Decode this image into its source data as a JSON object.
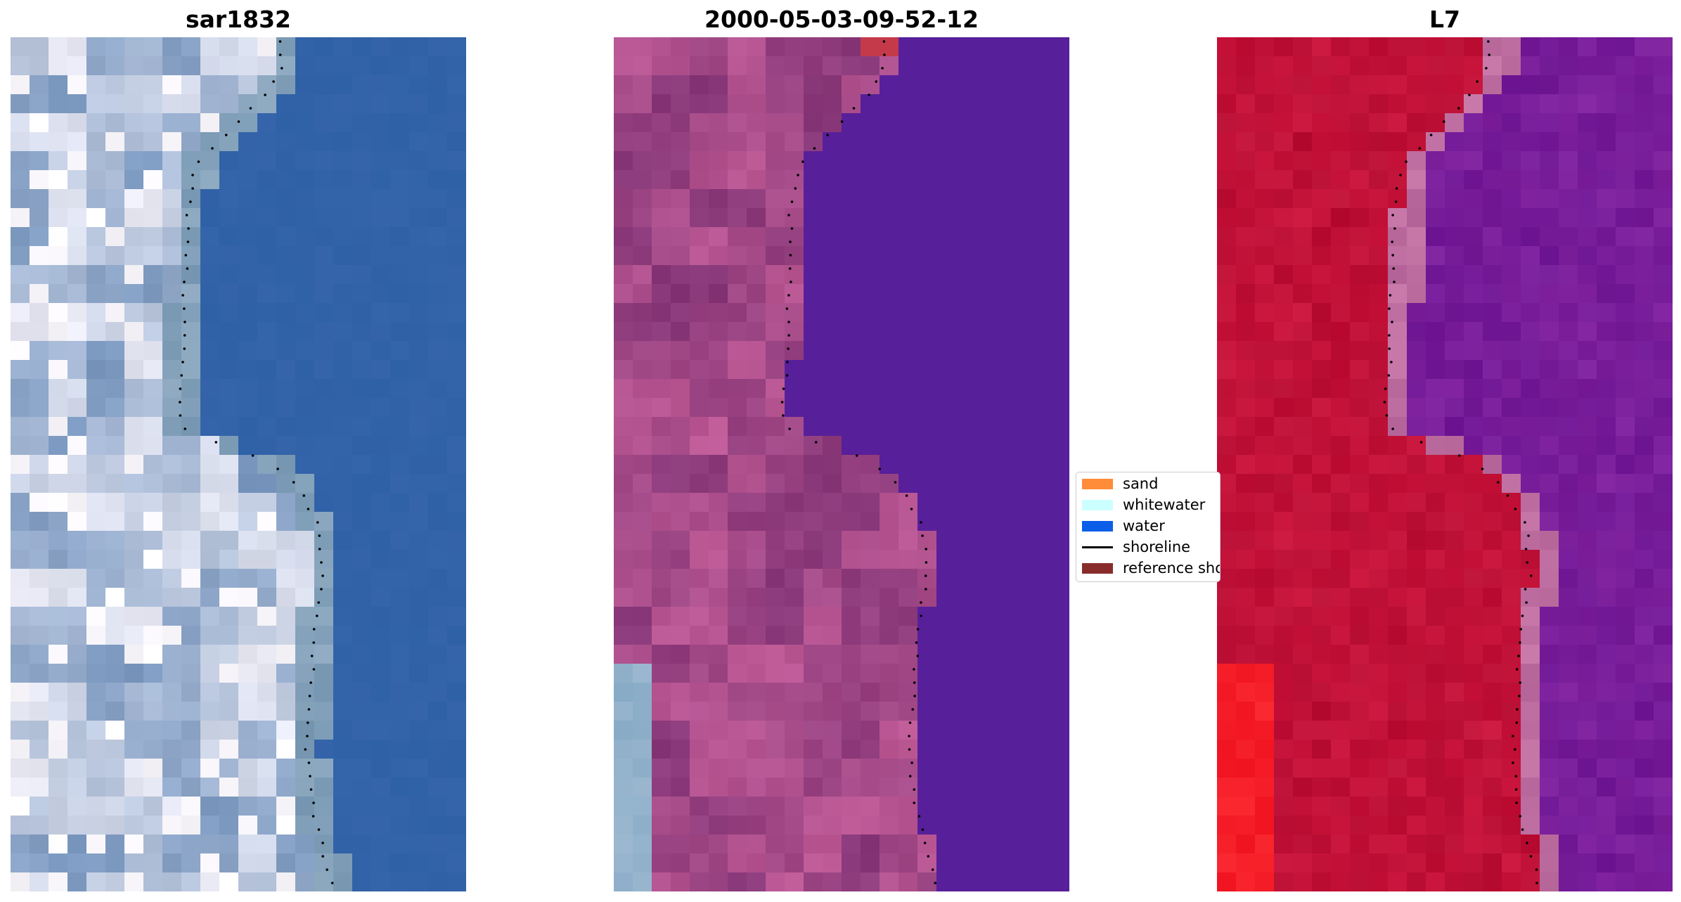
{
  "panels": [
    {
      "title": "sar1832",
      "palette": "rgb"
    },
    {
      "title": "2000-05-03-09-52-12",
      "palette": "classified"
    },
    {
      "title": "L7",
      "palette": "nir"
    }
  ],
  "legend": {
    "items": [
      {
        "label": "sand",
        "color": "#ff8c38",
        "kind": "patch"
      },
      {
        "label": "whitewater",
        "color": "#ccffff",
        "kind": "patch"
      },
      {
        "label": "water",
        "color": "#0a5ee8",
        "kind": "patch"
      },
      {
        "label": "shoreline",
        "color": "#000000",
        "kind": "line"
      },
      {
        "label": "reference shoreline",
        "color": "#8a2b2b",
        "kind": "patch"
      }
    ]
  },
  "colors": {
    "water_classified": "#581f9a",
    "land_classified": "#9e4a83",
    "water_rgb": "#3466ad",
    "land_rgb": "#9fb2cd",
    "land_nir": "#bf1238",
    "water_nir": "#7a1e96",
    "shoreline_dots": "#000000"
  }
}
